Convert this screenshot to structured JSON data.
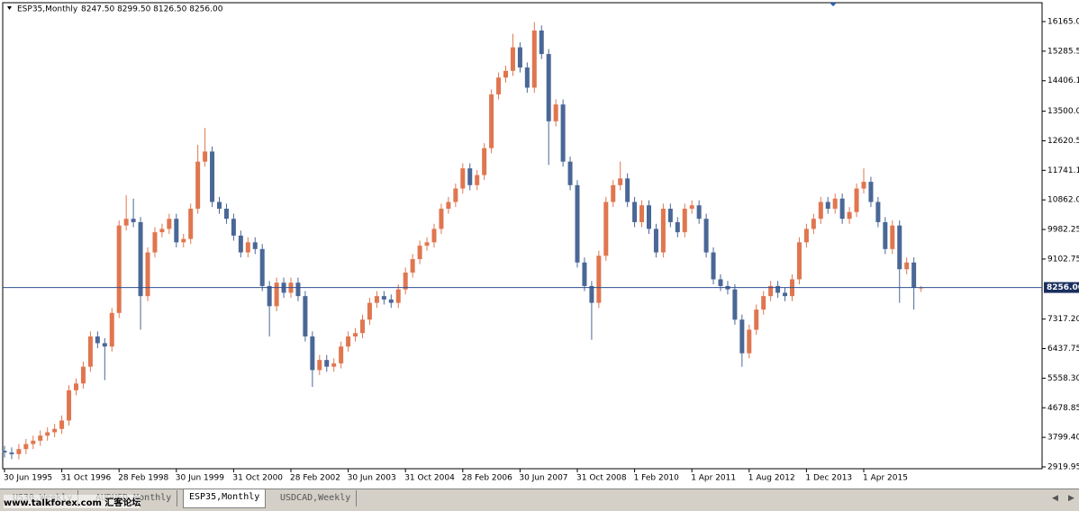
{
  "chart_data": {
    "type": "candlestick",
    "title": "ESP35,Monthly",
    "subtitle": "8247.50 8299.50 8126.50 8256.00",
    "up_color": "#e0764f",
    "down_color": "#4a6796",
    "line_color": "#2f4f8f",
    "ylim": [
      2866,
      16727
    ],
    "yticks": [
      {
        "value": 16165,
        "label": "16165.0"
      },
      15285.5,
      14406.1,
      {
        "value": 13500,
        "label": "13500.0"
      },
      12620.5,
      11741.1,
      {
        "value": 10862,
        "label": "10862.0"
      },
      9982.25,
      9102.75,
      {
        "value": 7317.2,
        "label": "7317.20"
      },
      6437.75,
      {
        "value": 5558.3,
        "label": "5558.30"
      },
      4678.85,
      {
        "value": 3799.4,
        "label": "3799.40"
      },
      2919.95
    ],
    "current_price": {
      "value": 8256,
      "label": "8256.00"
    },
    "categories": [
      "30 Jun 1995",
      null,
      null,
      null,
      null,
      null,
      null,
      null,
      "31 Oct 1996",
      null,
      null,
      null,
      null,
      null,
      null,
      null,
      "28 Feb 1998",
      null,
      null,
      null,
      null,
      null,
      null,
      null,
      "30 Jun 1999",
      null,
      null,
      null,
      null,
      null,
      null,
      null,
      "31 Oct 2000",
      null,
      null,
      null,
      null,
      null,
      null,
      null,
      "28 Feb 2002",
      null,
      null,
      null,
      null,
      null,
      null,
      null,
      "30 Jun 2003",
      null,
      null,
      null,
      null,
      null,
      null,
      null,
      "31 Oct 2004",
      null,
      null,
      null,
      null,
      null,
      null,
      null,
      "28 Feb 2006",
      null,
      null,
      null,
      null,
      null,
      null,
      null,
      "30 Jun 2007",
      null,
      null,
      null,
      null,
      null,
      null,
      null,
      "31 Oct 2008",
      null,
      null,
      null,
      null,
      null,
      null,
      null,
      "1 Feb 2010",
      null,
      null,
      null,
      null,
      null,
      null,
      null,
      "1 Apr 2011",
      null,
      null,
      null,
      null,
      null,
      null,
      null,
      "1 Aug 2012",
      null,
      null,
      null,
      null,
      null,
      null,
      null,
      "1 Dec 2013",
      null,
      null,
      null,
      null,
      null,
      null,
      null,
      "1 Apr 2015",
      null,
      null,
      null,
      null,
      null,
      null,
      null,
      null
    ],
    "open": [
      3400,
      3350,
      3300,
      3450,
      3600,
      3700,
      3850,
      3950,
      4050,
      4300,
      5200,
      5400,
      5900,
      6800,
      6600,
      6500,
      7500,
      10100,
      10300,
      10200,
      8000,
      9300,
      9900,
      10000,
      10300,
      9600,
      9700,
      10600,
      12000,
      12300,
      10800,
      10600,
      10300,
      9800,
      9300,
      9600,
      9400,
      8300,
      7700,
      8400,
      8100,
      8400,
      8000,
      6800,
      5800,
      6100,
      5900,
      6000,
      6500,
      6800,
      6900,
      7300,
      7800,
      8000,
      7900,
      7800,
      8200,
      8700,
      9100,
      9500,
      9600,
      10000,
      10600,
      10800,
      11200,
      11800,
      11300,
      11600,
      12400,
      14000,
      14500,
      14700,
      15400,
      14800,
      14200,
      15900,
      15200,
      13200,
      13700,
      12000,
      11300,
      9000,
      8300,
      7800,
      9200,
      10800,
      11300,
      11500,
      10800,
      10200,
      10700,
      10000,
      9300,
      10600,
      10200,
      9900,
      10600,
      10700,
      10300,
      9300,
      8500,
      8300,
      8200,
      7300,
      6300,
      7000,
      7600,
      8000,
      8300,
      8100,
      8000,
      8500,
      9600,
      10000,
      10300,
      10800,
      10600,
      10900,
      10300,
      10500,
      11200,
      11400,
      10800,
      10200,
      9400,
      10100,
      8800,
      9000,
      8247.5
    ],
    "high": [
      3550,
      3500,
      3600,
      3750,
      3850,
      4000,
      4100,
      4200,
      4450,
      5350,
      5550,
      6050,
      6950,
      6950,
      6750,
      7650,
      10250,
      11000,
      10900,
      10350,
      9450,
      10050,
      10150,
      10450,
      10450,
      9850,
      10750,
      12500,
      13000,
      12450,
      10950,
      10750,
      10450,
      9950,
      9750,
      9750,
      9550,
      8450,
      8550,
      8550,
      8550,
      8550,
      8150,
      6950,
      6250,
      6250,
      6150,
      6650,
      6950,
      7050,
      7450,
      7950,
      8150,
      8150,
      8050,
      8350,
      8850,
      9250,
      9650,
      9750,
      10150,
      10750,
      10950,
      11350,
      11950,
      11950,
      11750,
      12550,
      14150,
      14650,
      14850,
      15800,
      15550,
      14950,
      16150,
      16050,
      15350,
      13850,
      13850,
      12150,
      11450,
      9150,
      8450,
      9350,
      10950,
      11450,
      12000,
      11650,
      10950,
      10850,
      10850,
      10150,
      10750,
      10750,
      10350,
      10750,
      10850,
      10850,
      10450,
      9450,
      8650,
      8450,
      8350,
      7450,
      7150,
      7750,
      8150,
      8450,
      8450,
      8250,
      8650,
      9750,
      10150,
      10450,
      10950,
      10950,
      11050,
      11050,
      10650,
      11350,
      11800,
      11550,
      10950,
      10350,
      10250,
      10250,
      9150,
      9150,
      8299.5
    ],
    "low": [
      3200,
      3150,
      3150,
      3300,
      3450,
      3550,
      3700,
      3800,
      3900,
      4150,
      5050,
      5250,
      5750,
      6450,
      5500,
      6350,
      7350,
      9950,
      10050,
      7000,
      7850,
      9150,
      9750,
      9850,
      9450,
      9450,
      9550,
      10450,
      11850,
      10650,
      10450,
      10150,
      9650,
      9150,
      9150,
      9250,
      8150,
      6800,
      7550,
      7950,
      7950,
      7850,
      6650,
      5300,
      5650,
      5750,
      5750,
      5850,
      6350,
      6650,
      6750,
      7150,
      7650,
      7750,
      7650,
      7650,
      8050,
      8550,
      8950,
      9350,
      9450,
      9850,
      10450,
      10650,
      11050,
      11150,
      11150,
      11450,
      12250,
      13850,
      14350,
      14550,
      14650,
      14050,
      14050,
      15050,
      11900,
      13050,
      11850,
      11150,
      8850,
      8150,
      6700,
      7650,
      9050,
      10650,
      11150,
      10650,
      10050,
      10050,
      9850,
      9150,
      9150,
      10050,
      9750,
      9750,
      10450,
      10150,
      9150,
      8350,
      8150,
      8050,
      7150,
      5900,
      6150,
      6850,
      7450,
      7850,
      7950,
      7850,
      7850,
      8350,
      9450,
      9850,
      10150,
      10450,
      10450,
      10150,
      10150,
      10350,
      11050,
      10650,
      10050,
      9250,
      9250,
      7800,
      8650,
      7600,
      8126.5
    ],
    "close": [
      3350,
      3300,
      3450,
      3600,
      3700,
      3850,
      3950,
      4050,
      4300,
      5200,
      5400,
      5900,
      6800,
      6600,
      6500,
      7500,
      10100,
      10300,
      10200,
      8000,
      9300,
      9900,
      10000,
      10300,
      9600,
      9700,
      10600,
      12000,
      12300,
      10800,
      10600,
      10300,
      9800,
      9300,
      9600,
      9400,
      8300,
      7700,
      8400,
      8100,
      8400,
      8000,
      6800,
      5800,
      6100,
      5900,
      6000,
      6500,
      6800,
      6900,
      7300,
      7800,
      8000,
      7900,
      7800,
      8200,
      8700,
      9100,
      9500,
      9600,
      10000,
      10600,
      10800,
      11200,
      11800,
      11300,
      11600,
      12400,
      14000,
      14500,
      14700,
      15400,
      14800,
      14200,
      15900,
      15200,
      13200,
      13700,
      12000,
      11300,
      9000,
      8300,
      7800,
      9200,
      10800,
      11300,
      11500,
      10800,
      10200,
      10700,
      10000,
      9300,
      10600,
      10200,
      9900,
      10600,
      10700,
      10300,
      9300,
      8500,
      8300,
      8200,
      7300,
      6300,
      7000,
      7600,
      8000,
      8300,
      8100,
      8000,
      8500,
      9600,
      10000,
      10300,
      10800,
      10600,
      10900,
      10300,
      10500,
      11200,
      11400,
      10800,
      10200,
      9400,
      10100,
      8800,
      9000,
      8250,
      8256
    ]
  },
  "tabs": [
    "US30,Weekly",
    "AUDUSD,Monthly",
    "ESP35,Monthly",
    "USDCAD,Weekly"
  ],
  "watermark": "www.talkforex.com 汇客论坛"
}
